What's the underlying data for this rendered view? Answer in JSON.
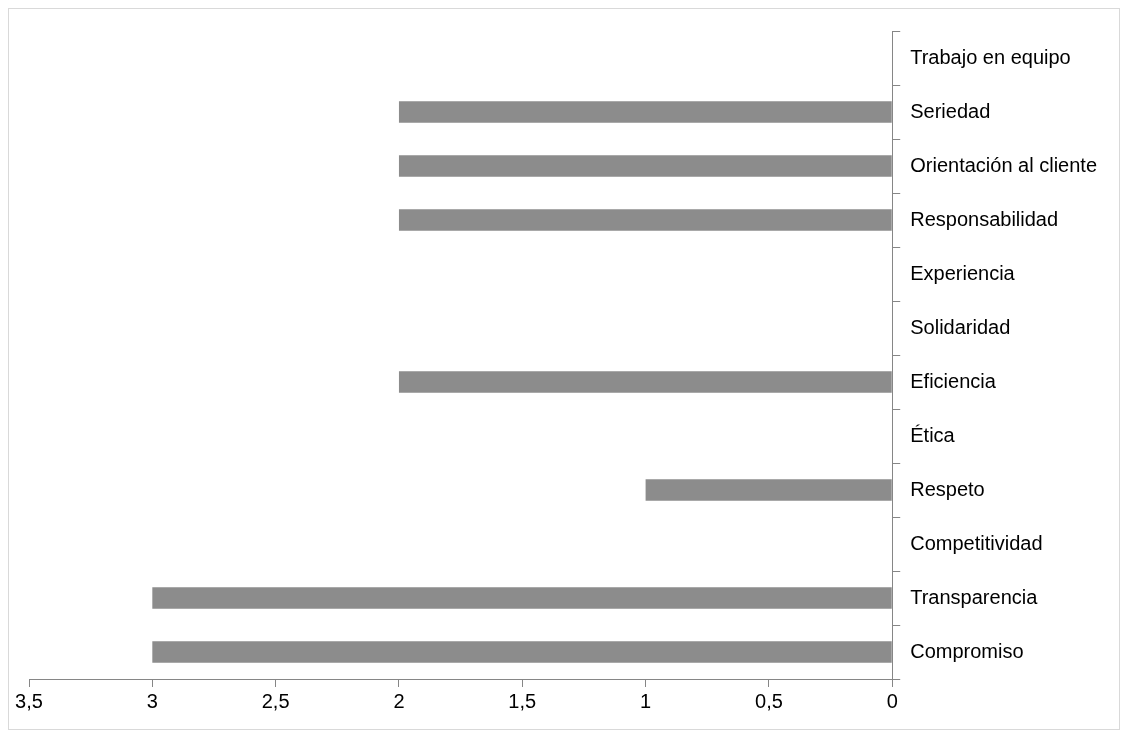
{
  "chart_data": {
    "type": "bar",
    "orientation": "horizontal",
    "categories": [
      "Trabajo en equipo",
      "Seriedad",
      "Orientación al cliente",
      "Responsabilidad",
      "Experiencia",
      "Solidaridad",
      "Eficiencia",
      "Ética",
      "Respeto",
      "Competitividad",
      "Transparencia",
      "Compromiso"
    ],
    "values": [
      0,
      2,
      2,
      2,
      0,
      0,
      2,
      0,
      1,
      0,
      3,
      3
    ],
    "color": "#8c8c8c",
    "xlim": [
      3.5,
      0
    ],
    "xticks": [
      {
        "value": 3.5,
        "label": "3,5"
      },
      3,
      {
        "value": 2.5,
        "label": "2,5"
      },
      2,
      {
        "value": 1.5,
        "label": "1,5"
      },
      1,
      {
        "value": 0.5,
        "label": "0,5"
      },
      0
    ],
    "grid": false,
    "legend": false
  }
}
